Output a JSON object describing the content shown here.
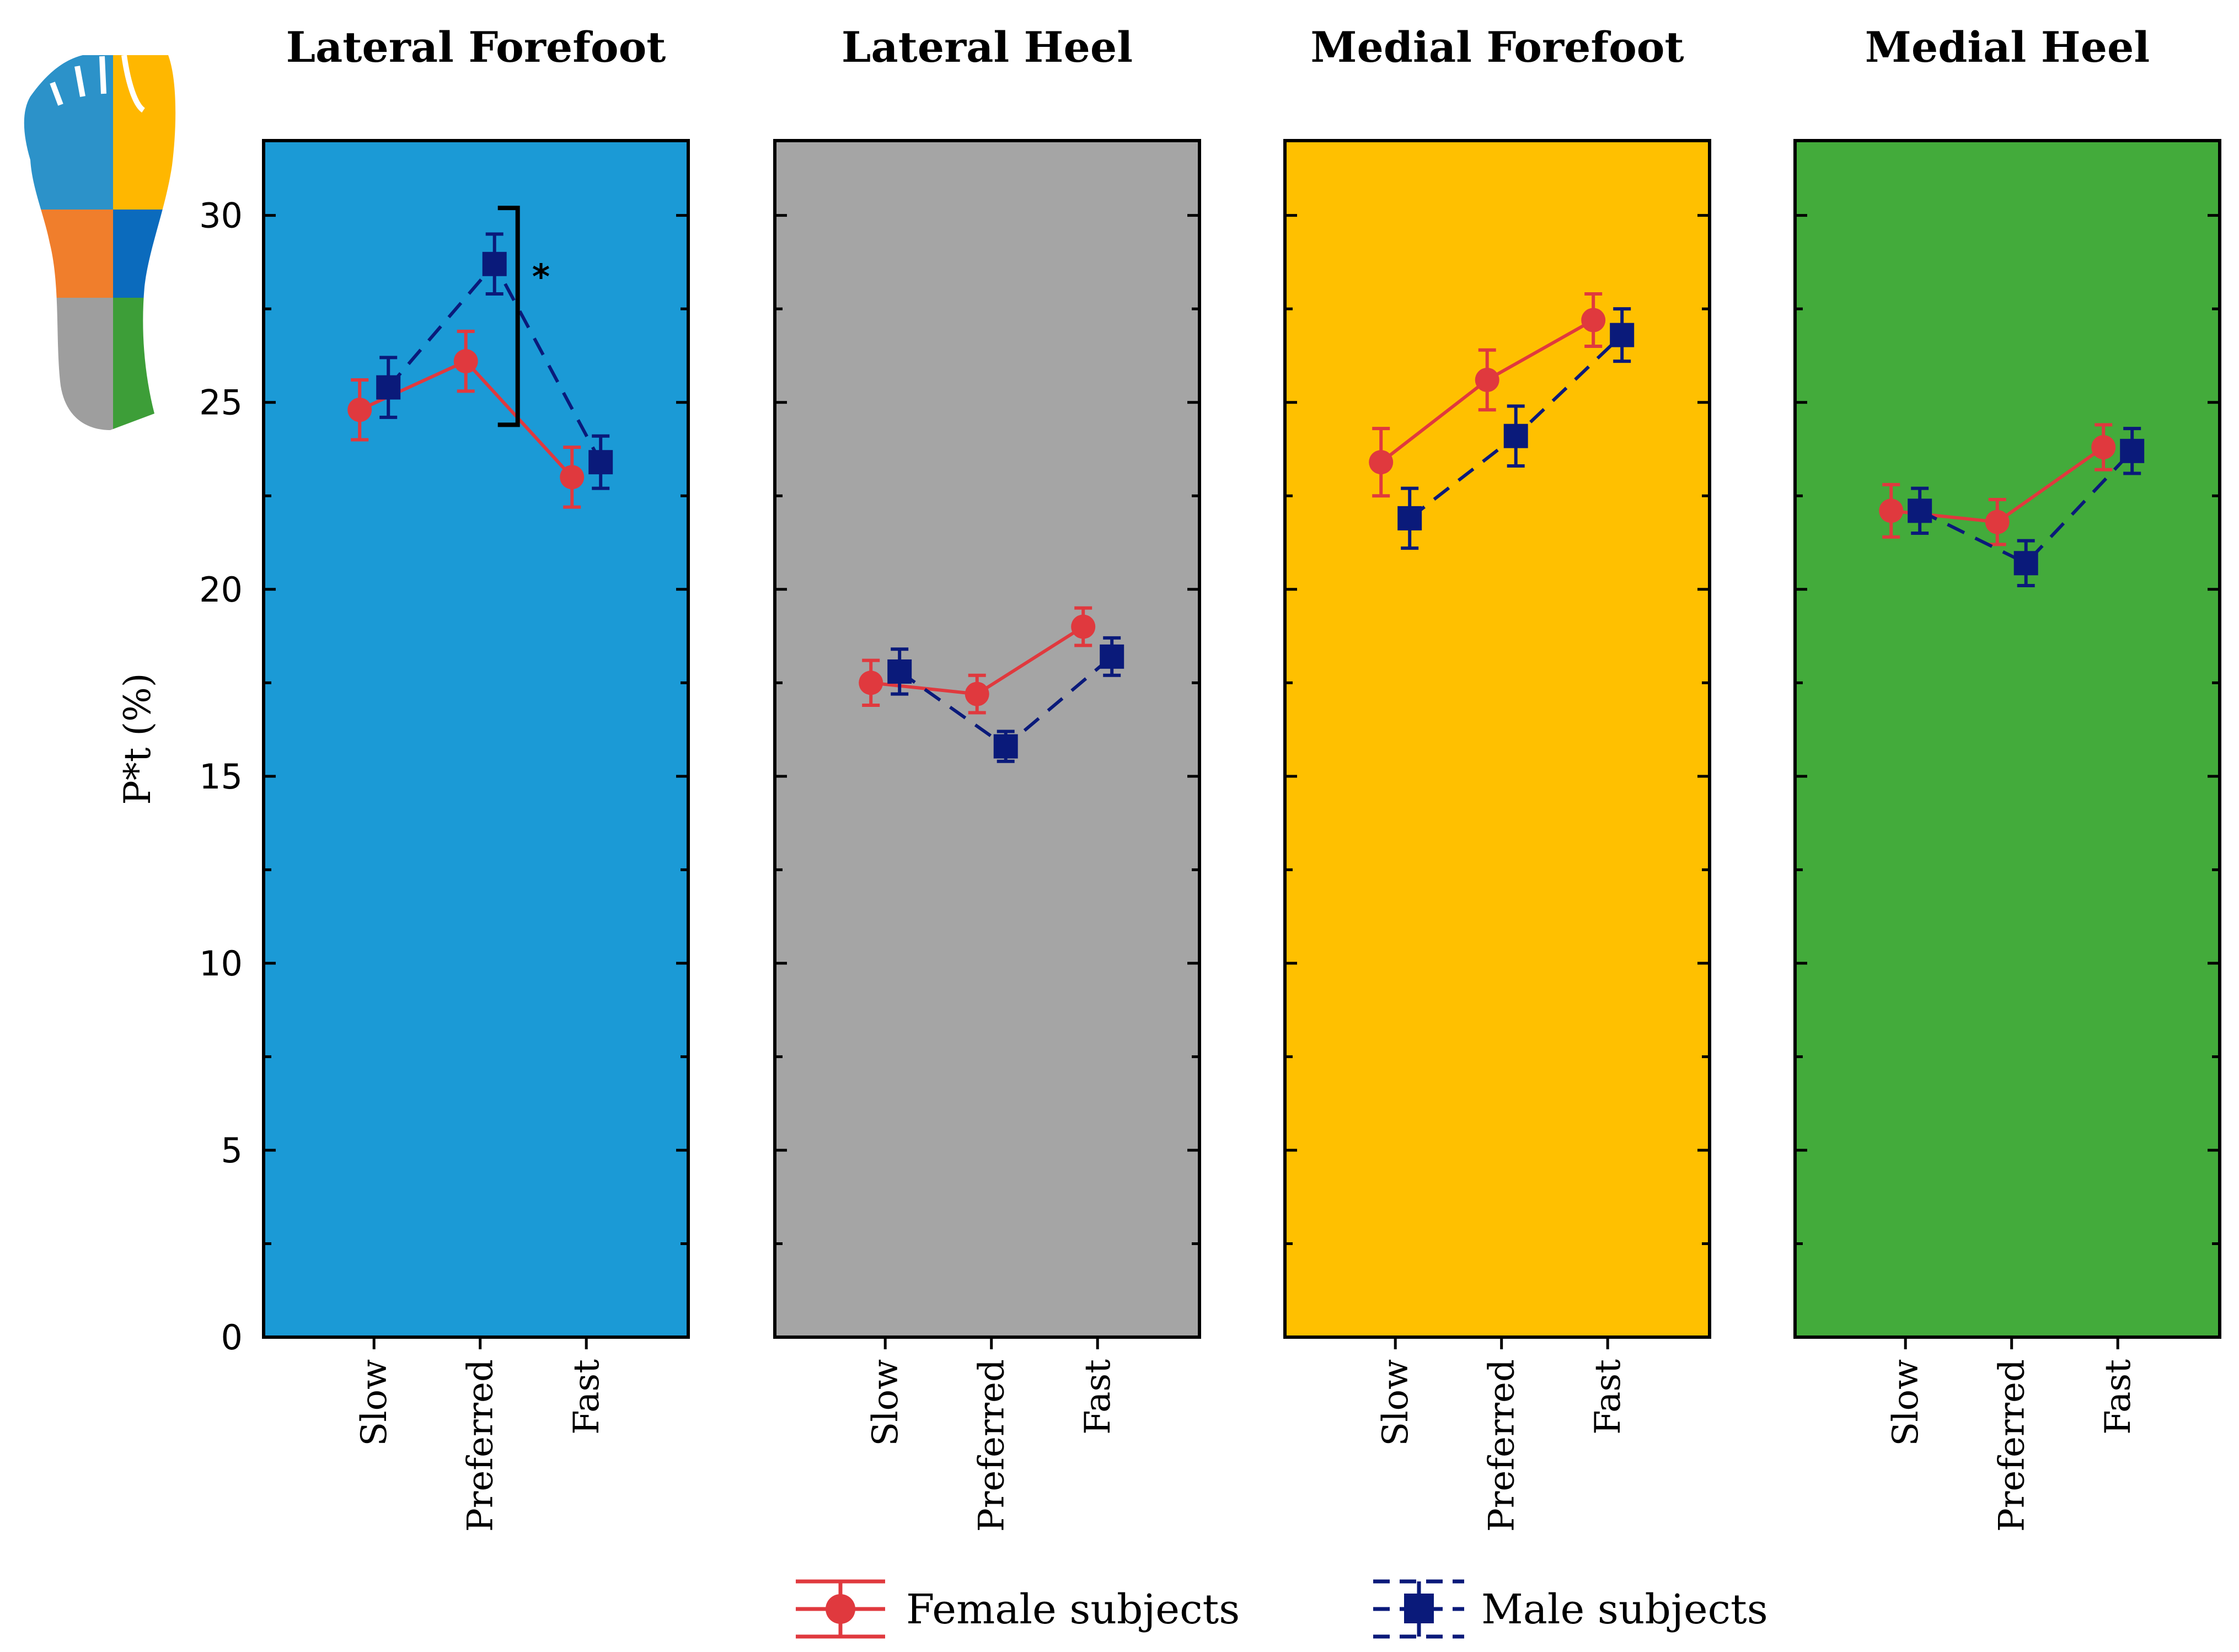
{
  "chart_data": {
    "type": "line",
    "ylabel": "P*t (%)",
    "ylim": [
      0,
      32
    ],
    "yticks": [
      0,
      5,
      10,
      15,
      20,
      25,
      30
    ],
    "categories": [
      "Slow",
      "Preferred",
      "Fast"
    ],
    "legend": {
      "placement": "bottom-center",
      "entries": [
        {
          "name": "Female subjects",
          "color": "#e0393e",
          "marker": "circle",
          "line": "solid"
        },
        {
          "name": "Male subjects",
          "color": "#0a1a7a",
          "marker": "square",
          "line": "dashed"
        }
      ]
    },
    "panels": [
      {
        "title": "Lateral Forefoot",
        "background": "#1b9ad6",
        "series": [
          {
            "name": "Female subjects",
            "values": [
              24.8,
              26.1,
              23.0
            ],
            "errors": [
              0.8,
              0.8,
              0.8
            ]
          },
          {
            "name": "Male subjects",
            "values": [
              25.4,
              28.7,
              23.4
            ],
            "errors": [
              0.8,
              0.8,
              0.7
            ]
          }
        ],
        "annotation": {
          "text": "*",
          "category": "Preferred",
          "y_range": [
            24.4,
            30.2
          ]
        }
      },
      {
        "title": "Lateral Heel",
        "background": "#a5a5a5",
        "series": [
          {
            "name": "Female subjects",
            "values": [
              17.5,
              17.2,
              19.0
            ],
            "errors": [
              0.6,
              0.5,
              0.5
            ]
          },
          {
            "name": "Male subjects",
            "values": [
              17.8,
              15.8,
              18.2
            ],
            "errors": [
              0.6,
              0.4,
              0.5
            ]
          }
        ]
      },
      {
        "title": "Medial Forefoot",
        "background": "#ffc000",
        "series": [
          {
            "name": "Female subjects",
            "values": [
              23.4,
              25.6,
              27.2
            ],
            "errors": [
              0.9,
              0.8,
              0.7
            ]
          },
          {
            "name": "Male subjects",
            "values": [
              21.9,
              24.1,
              26.8
            ],
            "errors": [
              0.8,
              0.8,
              0.7
            ]
          }
        ]
      },
      {
        "title": "Medial Heel",
        "background": "#43ab3b",
        "series": [
          {
            "name": "Female subjects",
            "values": [
              22.1,
              21.8,
              23.8
            ],
            "errors": [
              0.7,
              0.6,
              0.6
            ]
          },
          {
            "name": "Male subjects",
            "values": [
              22.1,
              20.7,
              23.7
            ],
            "errors": [
              0.6,
              0.6,
              0.6
            ]
          }
        ]
      }
    ]
  },
  "foot_map": {
    "regions": [
      {
        "name": "lateral-forefoot",
        "color": "#2c92c9"
      },
      {
        "name": "medial-forefoot",
        "color": "#ffb700"
      },
      {
        "name": "lateral-midfoot",
        "color": "#f07e2c"
      },
      {
        "name": "medial-midfoot",
        "color": "#0b6bbd"
      },
      {
        "name": "lateral-heel",
        "color": "#9e9e9e"
      },
      {
        "name": "medial-heel",
        "color": "#3d9e38"
      }
    ]
  }
}
